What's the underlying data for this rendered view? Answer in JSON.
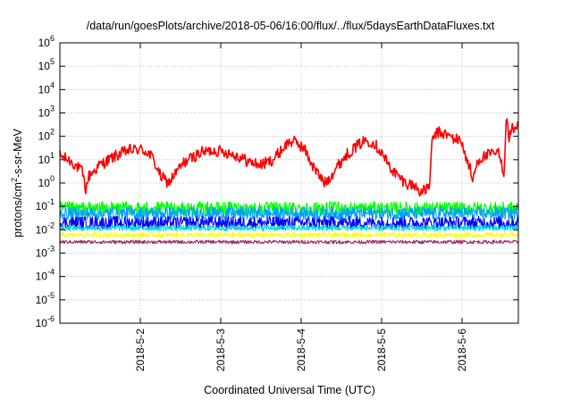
{
  "chart_data": {
    "type": "line",
    "title": "/data/run/goesPlots/archive/2018-05-06/16:00/flux/../flux/5daysEarthDataFluxes.txt",
    "xlabel": "Coordinated Universal Time (UTC)",
    "ylabel": {
      "prefix": "protons/cm",
      "superscript": "2",
      "suffix": "-s-sr-MeV"
    },
    "y_scale": "log",
    "ylim": [
      1e-06,
      1000000.0
    ],
    "xlim": [
      0,
      5.7
    ],
    "y_ticks": [
      {
        "exp": "6",
        "value": 1000000.0
      },
      {
        "exp": "5",
        "value": 100000.0
      },
      {
        "exp": "4",
        "value": 10000.0
      },
      {
        "exp": "3",
        "value": 1000.0
      },
      {
        "exp": "2",
        "value": 100.0
      },
      {
        "exp": "1",
        "value": 10.0
      },
      {
        "exp": "0",
        "value": 1.0
      },
      {
        "exp": "-1",
        "value": 0.1
      },
      {
        "exp": "-2",
        "value": 0.01
      },
      {
        "exp": "-3",
        "value": 0.001
      },
      {
        "exp": "-4",
        "value": 0.0001
      },
      {
        "exp": "-5",
        "value": 1e-05
      },
      {
        "exp": "-6",
        "value": 1e-06
      }
    ],
    "y_tick_base": "10",
    "x_ticks": [
      {
        "label": "2018-5-2",
        "value": 1
      },
      {
        "label": "2018-5-3",
        "value": 2
      },
      {
        "label": "2018-5-4",
        "value": 3
      },
      {
        "label": "2018-5-5",
        "value": 4
      },
      {
        "label": "2018-5-6",
        "value": 5
      }
    ],
    "grid": true,
    "legend": "none",
    "series": [
      {
        "color": "#ff0000",
        "noise": 0.5,
        "points": [
          [
            0,
            15
          ],
          [
            0.15,
            8
          ],
          [
            0.28,
            3
          ],
          [
            0.32,
            0.5
          ],
          [
            0.36,
            2
          ],
          [
            0.5,
            6
          ],
          [
            0.7,
            15
          ],
          [
            0.85,
            25
          ],
          [
            1.0,
            28
          ],
          [
            1.1,
            20
          ],
          [
            1.15,
            12
          ],
          [
            1.2,
            5
          ],
          [
            1.25,
            2
          ],
          [
            1.35,
            1
          ],
          [
            1.45,
            3
          ],
          [
            1.55,
            8
          ],
          [
            1.75,
            20
          ],
          [
            1.9,
            25
          ],
          [
            2.05,
            22
          ],
          [
            2.2,
            15
          ],
          [
            2.35,
            8
          ],
          [
            2.5,
            6
          ],
          [
            2.65,
            10
          ],
          [
            2.75,
            25
          ],
          [
            2.85,
            60
          ],
          [
            2.95,
            55
          ],
          [
            3.05,
            25
          ],
          [
            3.15,
            5
          ],
          [
            3.25,
            1.5
          ],
          [
            3.3,
            1
          ],
          [
            3.4,
            3
          ],
          [
            3.55,
            15
          ],
          [
            3.7,
            40
          ],
          [
            3.8,
            70
          ],
          [
            3.9,
            55
          ],
          [
            4.0,
            20
          ],
          [
            4.1,
            5
          ],
          [
            4.2,
            2
          ],
          [
            4.3,
            1
          ],
          [
            4.4,
            0.8
          ],
          [
            4.5,
            0.4
          ],
          [
            4.55,
            0.5
          ],
          [
            4.6,
            1
          ],
          [
            4.63,
            80
          ],
          [
            4.7,
            150
          ],
          [
            4.8,
            120
          ],
          [
            4.9,
            80
          ],
          [
            5.0,
            60
          ],
          [
            5.05,
            10
          ],
          [
            5.1,
            5
          ],
          [
            5.12,
            1
          ],
          [
            5.2,
            10
          ],
          [
            5.3,
            15
          ],
          [
            5.45,
            20
          ],
          [
            5.5,
            5
          ],
          [
            5.52,
            2
          ],
          [
            5.55,
            1000
          ],
          [
            5.58,
            80
          ],
          [
            5.62,
            200
          ],
          [
            5.7,
            300
          ]
        ]
      },
      {
        "color": "#00ff00",
        "noise": 0.6,
        "points": [
          [
            0,
            0.08
          ],
          [
            5.7,
            0.08
          ]
        ]
      },
      {
        "color": "#00a0ff",
        "noise": 0.55,
        "points": [
          [
            0,
            0.05
          ],
          [
            5.7,
            0.05
          ]
        ]
      },
      {
        "color": "#0000ff",
        "noise": 0.55,
        "points": [
          [
            0,
            0.02
          ],
          [
            5.7,
            0.02
          ]
        ]
      },
      {
        "color": "#00dddd",
        "noise": 0.25,
        "points": [
          [
            0,
            0.012
          ],
          [
            5.7,
            0.012
          ]
        ]
      },
      {
        "color": "#ffff00",
        "noise": 0.2,
        "points": [
          [
            0,
            0.006
          ],
          [
            5.7,
            0.006
          ]
        ]
      },
      {
        "color": "#993366",
        "noise": 0.15,
        "points": [
          [
            0,
            0.003
          ],
          [
            5.7,
            0.003
          ]
        ]
      }
    ]
  }
}
